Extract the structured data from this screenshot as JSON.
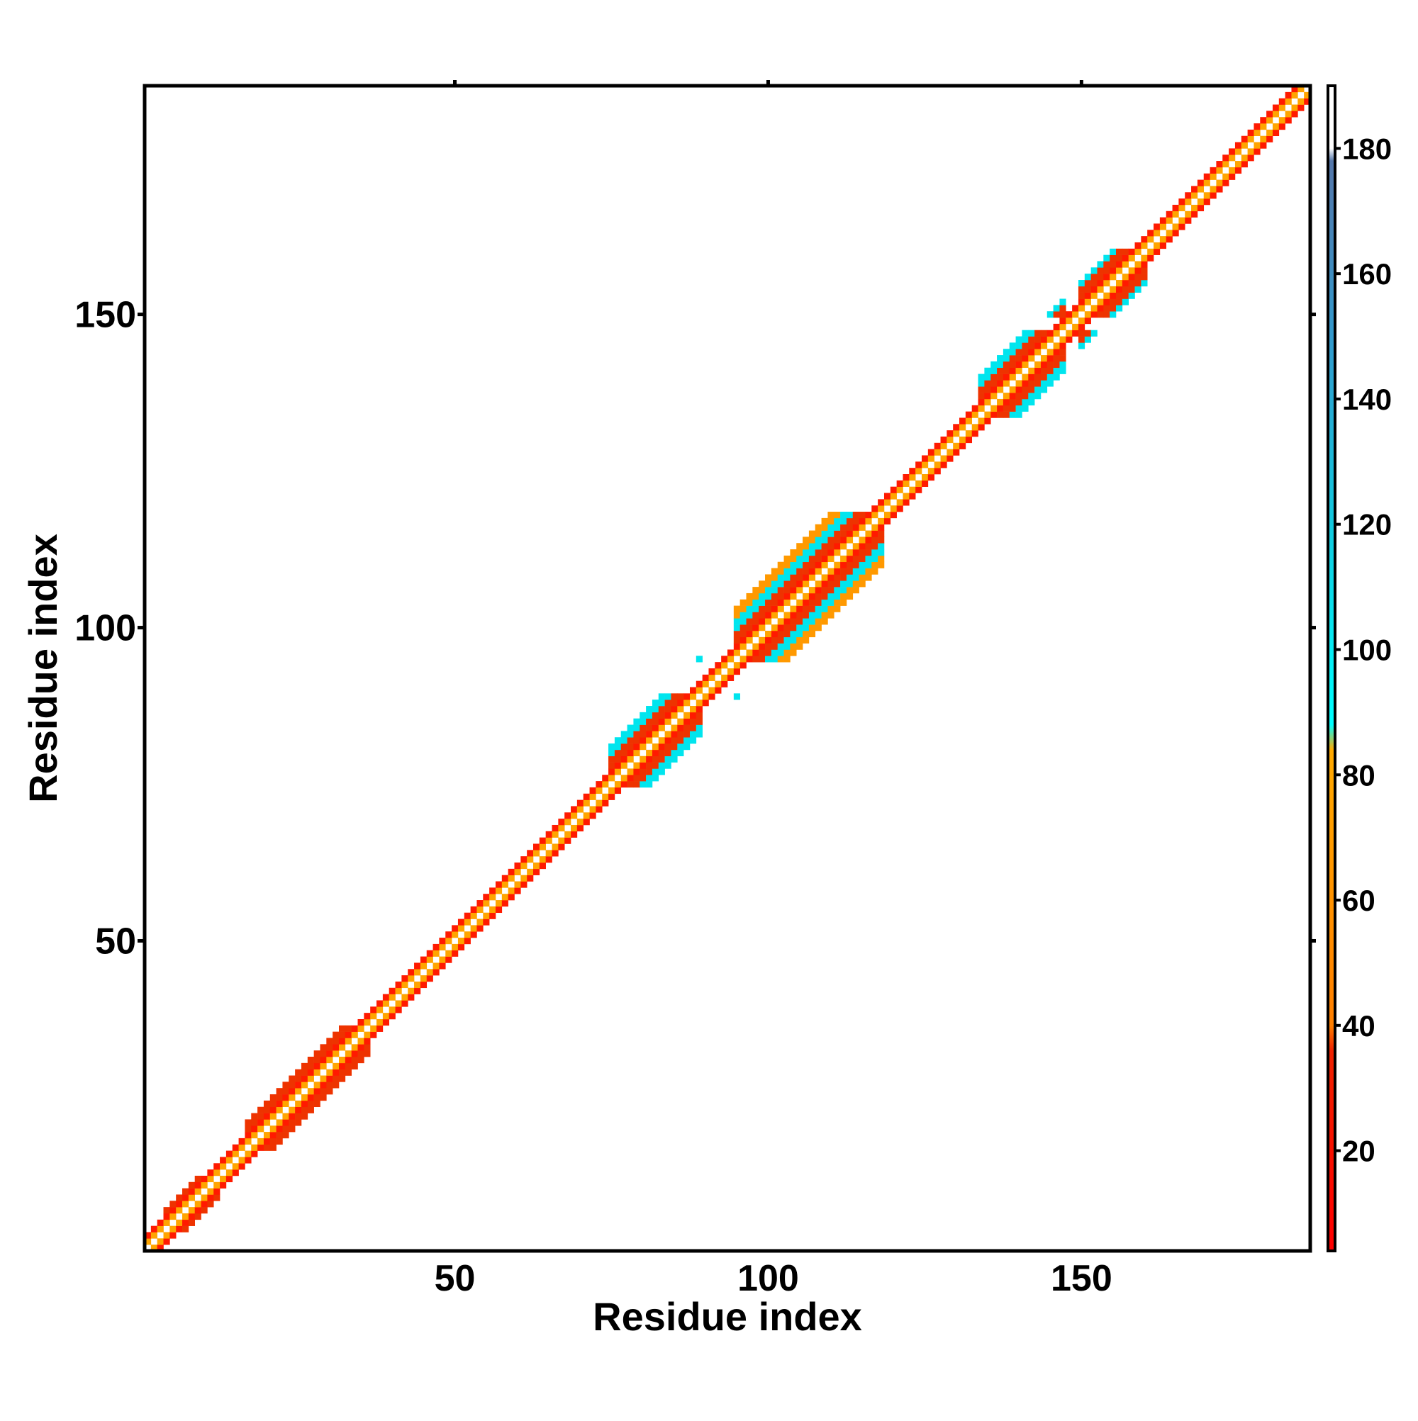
{
  "chart_data": {
    "type": "heatmap",
    "title": "",
    "xlabel": "Residue index",
    "ylabel": "Residue index",
    "xlim": [
      1,
      186
    ],
    "ylim": [
      1,
      186
    ],
    "x_ticks": [
      50,
      100,
      150
    ],
    "y_ticks": [
      50,
      100,
      150
    ],
    "colorbar": {
      "range": [
        4,
        190
      ],
      "ticks": [
        20,
        40,
        60,
        80,
        100,
        120,
        140,
        160,
        180
      ],
      "stops": [
        {
          "value": 4,
          "color": "#ff0000"
        },
        {
          "value": 36,
          "color": "#ee2200"
        },
        {
          "value": 40,
          "color": "#ff7f00"
        },
        {
          "value": 84,
          "color": "#ffaa00"
        },
        {
          "value": 88,
          "color": "#00ffff"
        },
        {
          "value": 118,
          "color": "#11cce0"
        },
        {
          "value": 150,
          "color": "#3399cc"
        },
        {
          "value": 178,
          "color": "#5577aa"
        },
        {
          "value": 180,
          "color": "#ffffff"
        },
        {
          "value": 190,
          "color": "#ffffff"
        }
      ]
    },
    "band": {
      "description_values": "distance from diagonal |i-j| in residues",
      "base_width": 2,
      "wide_regions": [
        {
          "start": 4,
          "end": 12,
          "width": 3
        },
        {
          "start": 17,
          "end": 36,
          "width": 4
        },
        {
          "start": 75,
          "end": 89,
          "width": 6
        },
        {
          "start": 95,
          "end": 118,
          "width": 8
        },
        {
          "start": 134,
          "end": 147,
          "width": 6
        },
        {
          "start": 150,
          "end": 160,
          "width": 5
        }
      ],
      "cell_colors": {
        "d1": "#ffa500",
        "d2": "#ff1a00",
        "wide": [
          "#00e5ee",
          "#ff2200",
          "#ff9900",
          "#00ffff",
          "#ee3300",
          "#ffaa00"
        ]
      }
    }
  }
}
